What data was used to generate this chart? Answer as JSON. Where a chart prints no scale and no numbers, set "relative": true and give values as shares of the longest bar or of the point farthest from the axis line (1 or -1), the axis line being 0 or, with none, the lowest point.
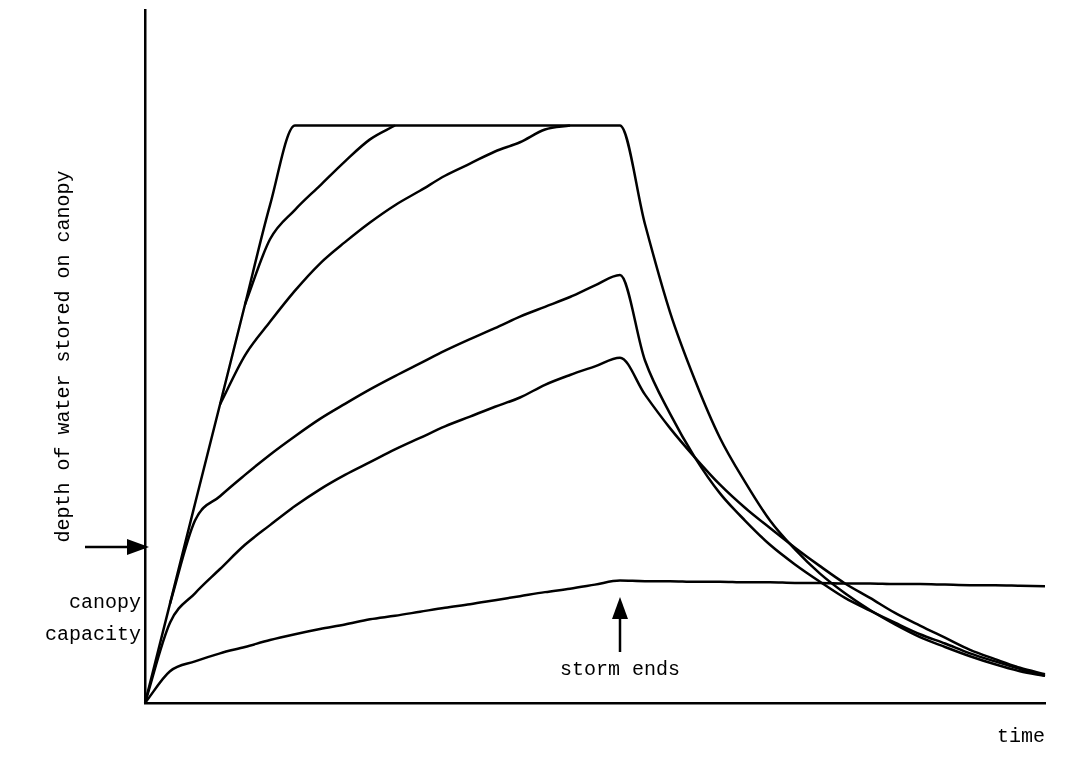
{
  "chart_data": {
    "type": "line",
    "relative": true,
    "xlabel": "time",
    "ylabel": "depth of water stored on canopy",
    "categories": [
      null,
      null,
      null,
      null,
      null,
      null,
      null,
      null,
      null,
      null,
      null,
      null,
      null,
      null,
      null,
      null,
      null,
      null,
      null,
      null,
      null,
      null,
      null,
      null,
      null,
      null,
      null,
      null,
      null,
      null,
      null,
      null,
      null,
      null,
      null,
      null,
      null
    ],
    "series": [
      {
        "color": "#000000",
        "values": [
          0,
          0.172,
          0.345,
          0.517,
          0.69,
          0.862,
          1,
          1,
          1,
          1,
          1,
          1,
          1,
          1,
          1,
          1,
          1,
          1,
          1,
          1,
          0.829,
          0.677,
          0.559,
          0.459,
          0.383,
          0.316,
          0.266,
          0.224,
          0.19,
          0.161,
          0.136,
          0.114,
          0.097,
          0.081,
          0.067,
          0.055,
          0.047
        ]
      },
      {
        "color": "#000000",
        "values": [
          null,
          null,
          null,
          null,
          0.69,
          0.803,
          0.854,
          0.896,
          0.938,
          0.976,
          1,
          null,
          null,
          null,
          null,
          null,
          null,
          null,
          null,
          null,
          null,
          null,
          null,
          null,
          null,
          null,
          null,
          null,
          null,
          null,
          null,
          null,
          null,
          null,
          null,
          null,
          null
        ]
      },
      {
        "color": "#000000",
        "values": [
          null,
          null,
          null,
          0.517,
          0.602,
          0.66,
          0.714,
          0.761,
          0.798,
          0.832,
          0.862,
          0.887,
          0.913,
          0.934,
          0.955,
          0.971,
          0.993,
          1,
          null,
          null,
          null,
          null,
          null,
          null,
          null,
          null,
          null,
          null,
          null,
          null,
          null,
          null,
          null,
          null,
          null,
          null,
          null
        ]
      },
      {
        "color": "#000000",
        "values": [
          null,
          0.172,
          0.316,
          0.358,
          0.395,
          0.43,
          0.462,
          0.492,
          0.518,
          0.543,
          0.566,
          0.588,
          0.61,
          0.63,
          0.649,
          0.669,
          0.686,
          0.703,
          0.723,
          0.741,
          0.593,
          0.501,
          0.425,
          0.363,
          0.316,
          0.274,
          0.24,
          0.21,
          0.182,
          0.16,
          0.139,
          0.119,
          0.103,
          0.086,
          0.072,
          0.059,
          0.047
        ]
      },
      {
        "color": "#000000",
        "values": [
          0,
          0.139,
          0.19,
          0.232,
          0.274,
          0.308,
          0.341,
          0.37,
          0.395,
          0.417,
          0.439,
          0.459,
          0.479,
          0.496,
          0.513,
          0.529,
          0.551,
          0.568,
          0.583,
          0.598,
          0.534,
          0.476,
          0.425,
          0.378,
          0.338,
          0.303,
          0.269,
          0.237,
          0.207,
          0.182,
          0.156,
          0.134,
          0.113,
          0.092,
          0.076,
          0.061,
          0.05
        ]
      },
      {
        "color": "#000000",
        "values": [
          0,
          0.055,
          0.072,
          0.086,
          0.097,
          0.109,
          0.119,
          0.128,
          0.136,
          0.145,
          0.151,
          0.158,
          0.165,
          0.171,
          0.178,
          0.185,
          0.192,
          0.198,
          0.205,
          0.212,
          0.211,
          0.211,
          0.21,
          0.21,
          0.209,
          0.209,
          0.208,
          0.208,
          0.207,
          0.207,
          0.206,
          0.206,
          0.205,
          0.204,
          0.204,
          0.203,
          0.202
        ]
      }
    ],
    "annotations": [
      "canopy capacity",
      "storm ends"
    ]
  }
}
